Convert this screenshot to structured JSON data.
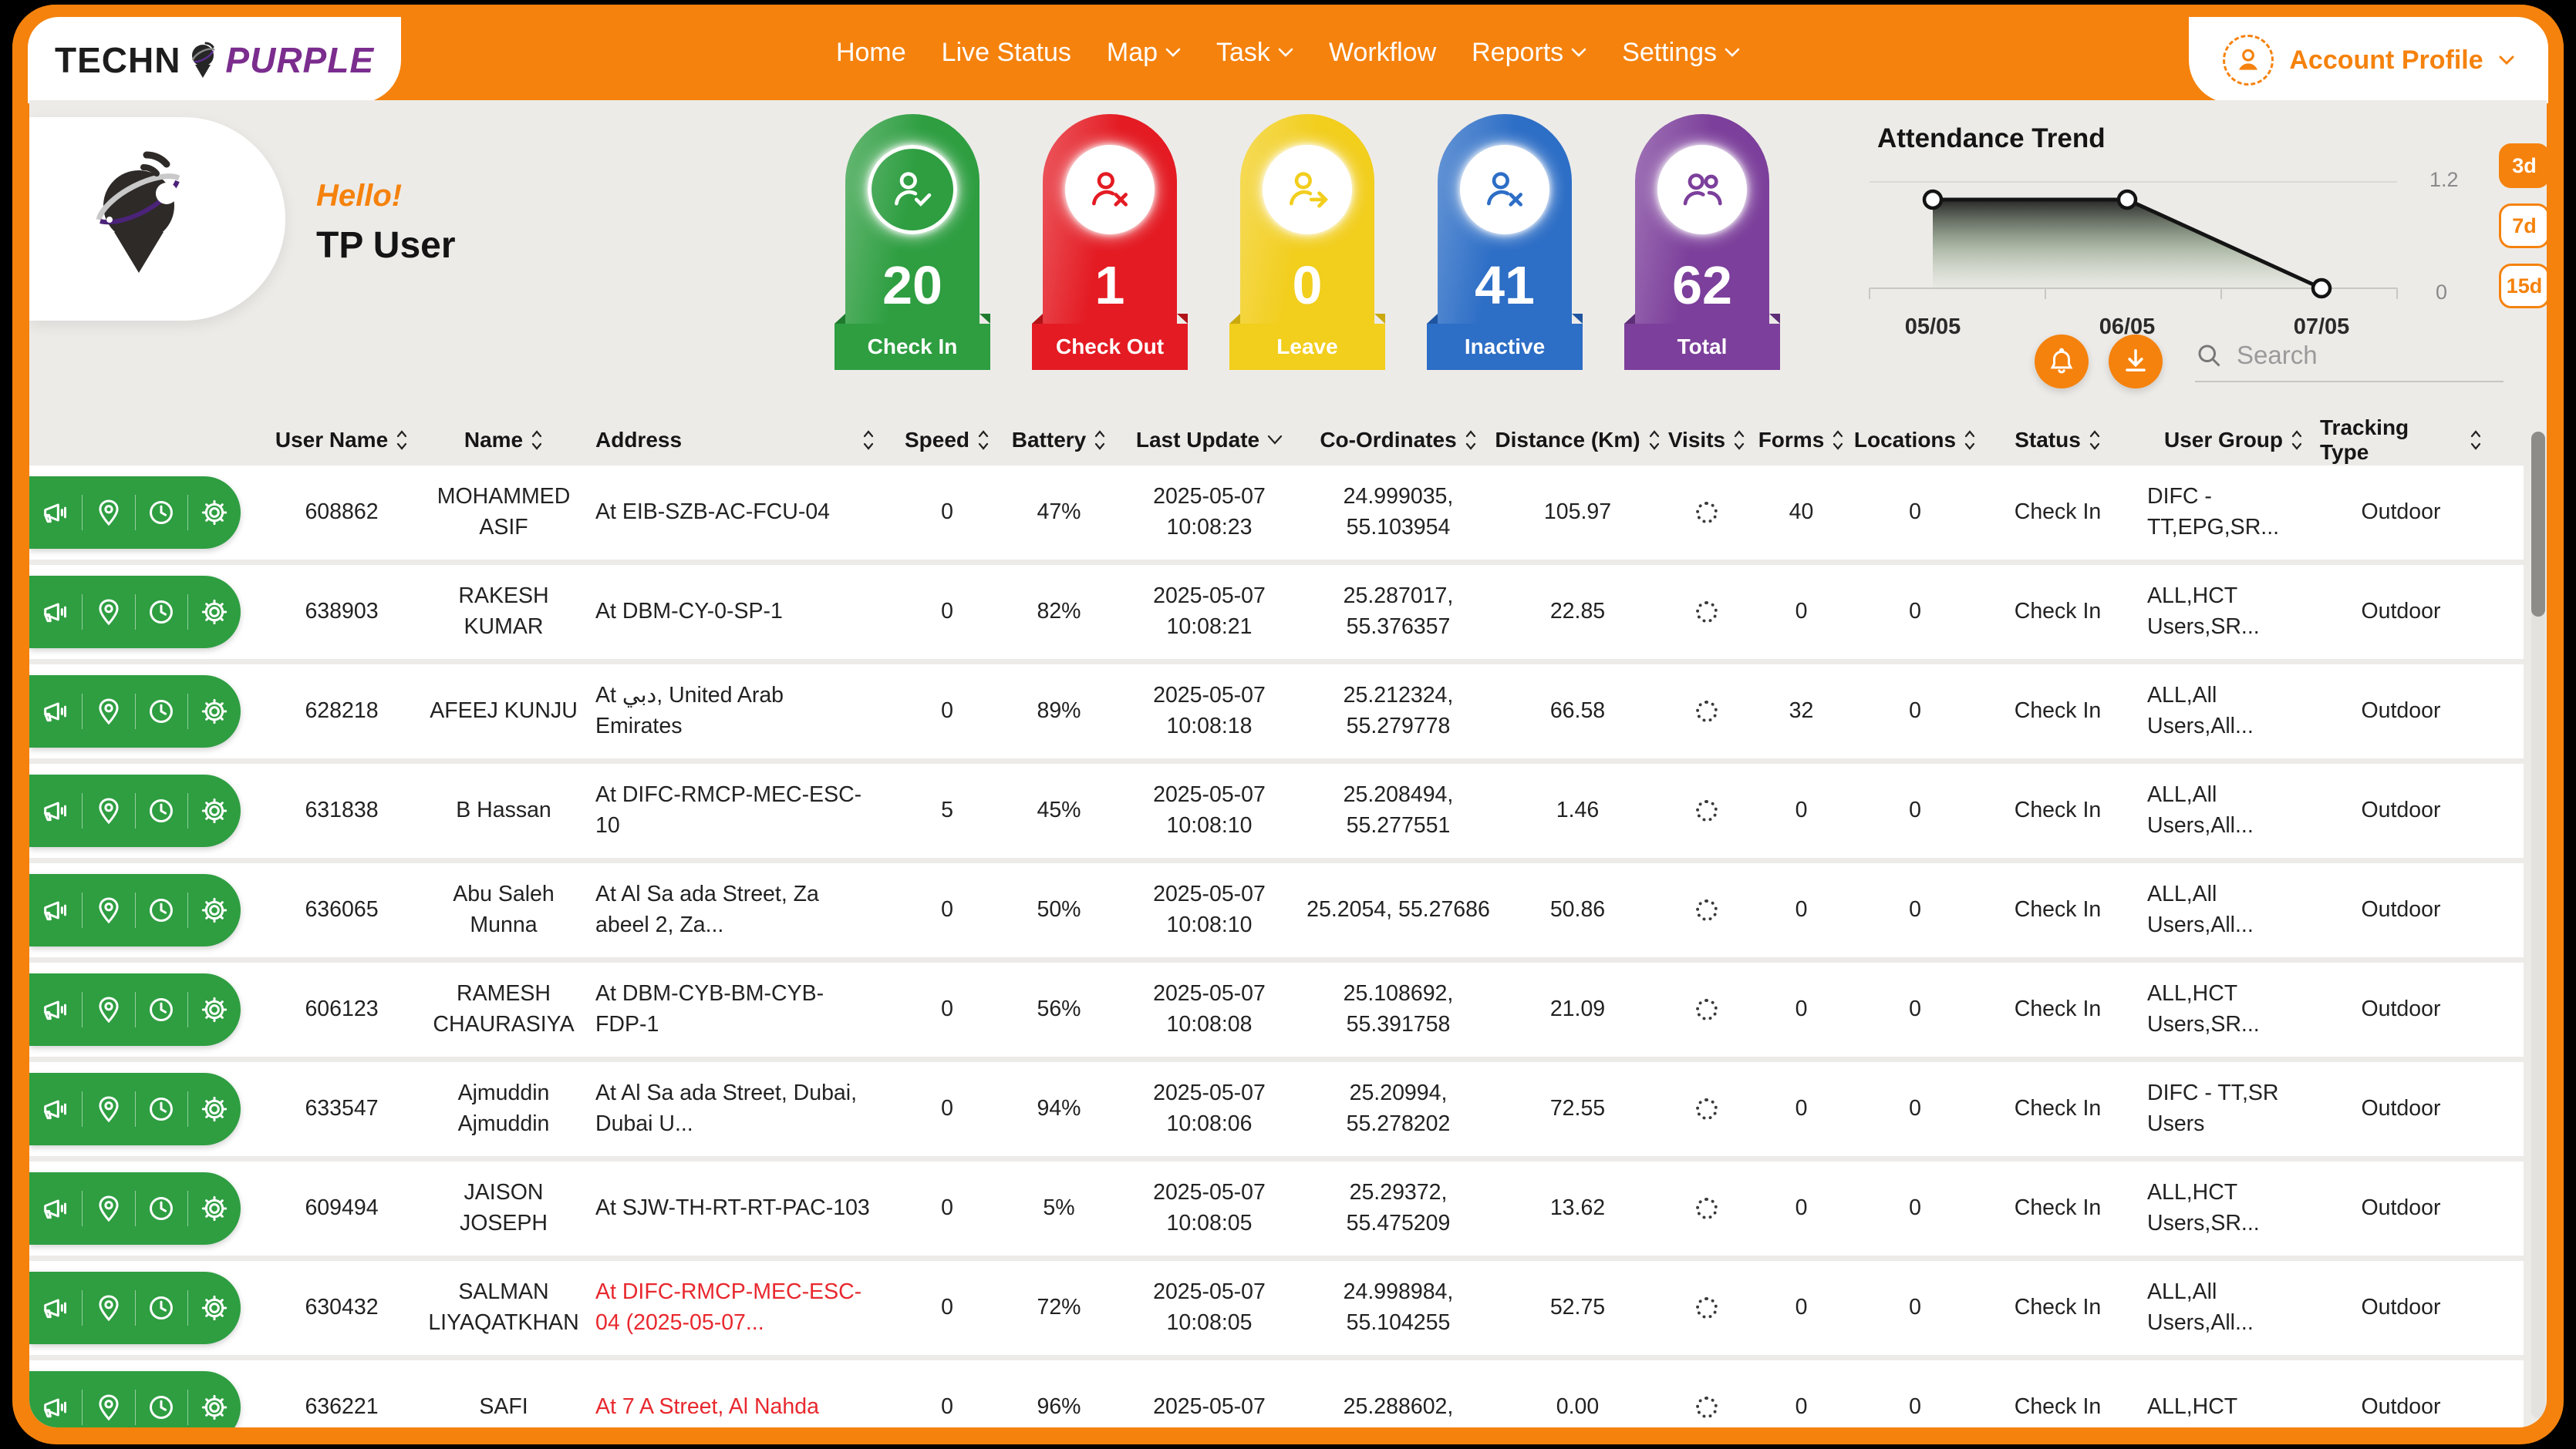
{
  "colors": {
    "brand_orange": "#F5820D",
    "brand_purple": "#7B2D8E",
    "address_alert_red": "#E8282E",
    "action_pill_green": "#2E9E41"
  },
  "brand": {
    "name_black": "TECHN",
    "name_purple": "PURPLE"
  },
  "nav": {
    "items": [
      {
        "label": "Home",
        "dropdown": false
      },
      {
        "label": "Live Status",
        "dropdown": false
      },
      {
        "label": "Map",
        "dropdown": true
      },
      {
        "label": "Task",
        "dropdown": true
      },
      {
        "label": "Workflow",
        "dropdown": false
      },
      {
        "label": "Reports",
        "dropdown": true
      },
      {
        "label": "Settings",
        "dropdown": true
      }
    ]
  },
  "account": {
    "label": "Account Profile"
  },
  "greeting": {
    "hello": "Hello!",
    "user": "TP User"
  },
  "stats": [
    {
      "label": "Check In",
      "value": "20",
      "color": "#2E9E41",
      "color_dark": "#1F7A2E",
      "icon": "person-check-icon"
    },
    {
      "label": "Check Out",
      "value": "1",
      "color": "#E41B23",
      "color_dark": "#B01318",
      "icon": "person-x-icon"
    },
    {
      "label": "Leave",
      "value": "0",
      "color": "#F2CE1D",
      "color_dark": "#C9A90E",
      "icon": "person-arrow-icon"
    },
    {
      "label": "Inactive",
      "value": "41",
      "color": "#2D6EC6",
      "color_dark": "#1F55A0",
      "icon": "person-x-icon"
    },
    {
      "label": "Total",
      "value": "62",
      "color": "#7C3F9B",
      "color_dark": "#5E2E77",
      "icon": "people-icon"
    }
  ],
  "chart_data": {
    "type": "line",
    "title": "Attendance Trend",
    "x": [
      "05/05",
      "06/05",
      "07/05"
    ],
    "values": [
      1,
      1,
      0
    ],
    "ylim": [
      0,
      1.2
    ],
    "ymax_label": "1.2",
    "ymin_label": "0",
    "grid": "top gridline only",
    "legend": "none",
    "range_buttons": [
      "3d",
      "7d",
      "15d"
    ],
    "active_range": "3d"
  },
  "toolbar": {
    "search_placeholder": "Search",
    "buttons": [
      "notifications-bell",
      "download"
    ]
  },
  "table": {
    "row_action_icons": [
      "megaphone-icon",
      "location-pin-icon",
      "clock-icon",
      "gear-icon"
    ],
    "visits_state": "loading-spinner",
    "columns": [
      {
        "key": "user_name",
        "label": "User Name",
        "sort": "both"
      },
      {
        "key": "name",
        "label": "Name",
        "sort": "both"
      },
      {
        "key": "address",
        "label": "Address",
        "sort": "both"
      },
      {
        "key": "speed",
        "label": "Speed",
        "sort": "both"
      },
      {
        "key": "battery",
        "label": "Battery",
        "sort": "both"
      },
      {
        "key": "last_update",
        "label": "Last Update",
        "sort": "down"
      },
      {
        "key": "co_ordinates",
        "label": "Co-Ordinates",
        "sort": "both"
      },
      {
        "key": "distance",
        "label": "Distance (Km)",
        "sort": "both"
      },
      {
        "key": "visits",
        "label": "Visits",
        "sort": "both"
      },
      {
        "key": "forms",
        "label": "Forms",
        "sort": "both"
      },
      {
        "key": "locations",
        "label": "Locations",
        "sort": "both"
      },
      {
        "key": "status",
        "label": "Status",
        "sort": "both"
      },
      {
        "key": "user_group",
        "label": "User Group",
        "sort": "both"
      },
      {
        "key": "tracking_type",
        "label": "Tracking Type",
        "sort": "both"
      }
    ],
    "rows": [
      {
        "user_name": "608862",
        "name": "MOHAMMED ASIF",
        "address": "At EIB-SZB-AC-FCU-04",
        "address_red": false,
        "speed": "0",
        "battery": "47%",
        "last_update": "2025-05-07 10:08:23",
        "co_ordinates": "24.999035, 55.103954",
        "distance": "105.97",
        "forms": "40",
        "locations": "0",
        "status": "Check In",
        "user_group": "DIFC - TT,EPG,SR...",
        "tracking_type": "Outdoor"
      },
      {
        "user_name": "638903",
        "name": "RAKESH KUMAR",
        "address": "At DBM-CY-0-SP-1",
        "address_red": false,
        "speed": "0",
        "battery": "82%",
        "last_update": "2025-05-07 10:08:21",
        "co_ordinates": "25.287017, 55.376357",
        "distance": "22.85",
        "forms": "0",
        "locations": "0",
        "status": "Check In",
        "user_group": "ALL,HCT Users,SR...",
        "tracking_type": "Outdoor"
      },
      {
        "user_name": "628218",
        "name": "AFEEJ KUNJU",
        "address": "At دبي, United Arab Emirates",
        "address_red": false,
        "speed": "0",
        "battery": "89%",
        "last_update": "2025-05-07 10:08:18",
        "co_ordinates": "25.212324, 55.279778",
        "distance": "66.58",
        "forms": "32",
        "locations": "0",
        "status": "Check In",
        "user_group": "ALL,All Users,All...",
        "tracking_type": "Outdoor"
      },
      {
        "user_name": "631838",
        "name": "B Hassan",
        "address": "At DIFC-RMCP-MEC-ESC-10",
        "address_red": false,
        "speed": "5",
        "battery": "45%",
        "last_update": "2025-05-07 10:08:10",
        "co_ordinates": "25.208494, 55.277551",
        "distance": "1.46",
        "forms": "0",
        "locations": "0",
        "status": "Check In",
        "user_group": "ALL,All Users,All...",
        "tracking_type": "Outdoor"
      },
      {
        "user_name": "636065",
        "name": "Abu Saleh Munna",
        "address": "At Al Sa ada Street, Za abeel 2, Za...",
        "address_red": false,
        "speed": "0",
        "battery": "50%",
        "last_update": "2025-05-07 10:08:10",
        "co_ordinates": "25.2054, 55.27686",
        "distance": "50.86",
        "forms": "0",
        "locations": "0",
        "status": "Check In",
        "user_group": "ALL,All Users,All...",
        "tracking_type": "Outdoor"
      },
      {
        "user_name": "606123",
        "name": "RAMESH CHAURASIYA",
        "address": "At DBM-CYB-BM-CYB-FDP-1",
        "address_red": false,
        "speed": "0",
        "battery": "56%",
        "last_update": "2025-05-07 10:08:08",
        "co_ordinates": "25.108692, 55.391758",
        "distance": "21.09",
        "forms": "0",
        "locations": "0",
        "status": "Check In",
        "user_group": "ALL,HCT Users,SR...",
        "tracking_type": "Outdoor"
      },
      {
        "user_name": "633547",
        "name": "Ajmuddin Ajmuddin",
        "address": "At Al Sa ada Street, Dubai, Dubai U...",
        "address_red": false,
        "speed": "0",
        "battery": "94%",
        "last_update": "2025-05-07 10:08:06",
        "co_ordinates": "25.20994, 55.278202",
        "distance": "72.55",
        "forms": "0",
        "locations": "0",
        "status": "Check In",
        "user_group": "DIFC - TT,SR Users",
        "tracking_type": "Outdoor"
      },
      {
        "user_name": "609494",
        "name": "JAISON JOSEPH",
        "address": "At SJW-TH-RT-RT-PAC-103",
        "address_red": false,
        "speed": "0",
        "battery": "5%",
        "last_update": "2025-05-07 10:08:05",
        "co_ordinates": "25.29372, 55.475209",
        "distance": "13.62",
        "forms": "0",
        "locations": "0",
        "status": "Check In",
        "user_group": "ALL,HCT Users,SR...",
        "tracking_type": "Outdoor"
      },
      {
        "user_name": "630432",
        "name": "SALMAN LIYAQATKHAN",
        "address": "At DIFC-RMCP-MEC-ESC-04 (2025-05-07...",
        "address_red": true,
        "speed": "0",
        "battery": "72%",
        "last_update": "2025-05-07 10:08:05",
        "co_ordinates": "24.998984, 55.104255",
        "distance": "52.75",
        "forms": "0",
        "locations": "0",
        "status": "Check In",
        "user_group": "ALL,All Users,All...",
        "tracking_type": "Outdoor"
      },
      {
        "user_name": "636221",
        "name": "SAFI",
        "address": "At 7 A Street, Al Nahda",
        "address_red": true,
        "speed": "0",
        "battery": "96%",
        "last_update": "2025-05-07",
        "co_ordinates": "25.288602,",
        "distance": "0.00",
        "forms": "0",
        "locations": "0",
        "status": "Check In",
        "user_group": "ALL,HCT",
        "tracking_type": "Outdoor"
      }
    ]
  }
}
